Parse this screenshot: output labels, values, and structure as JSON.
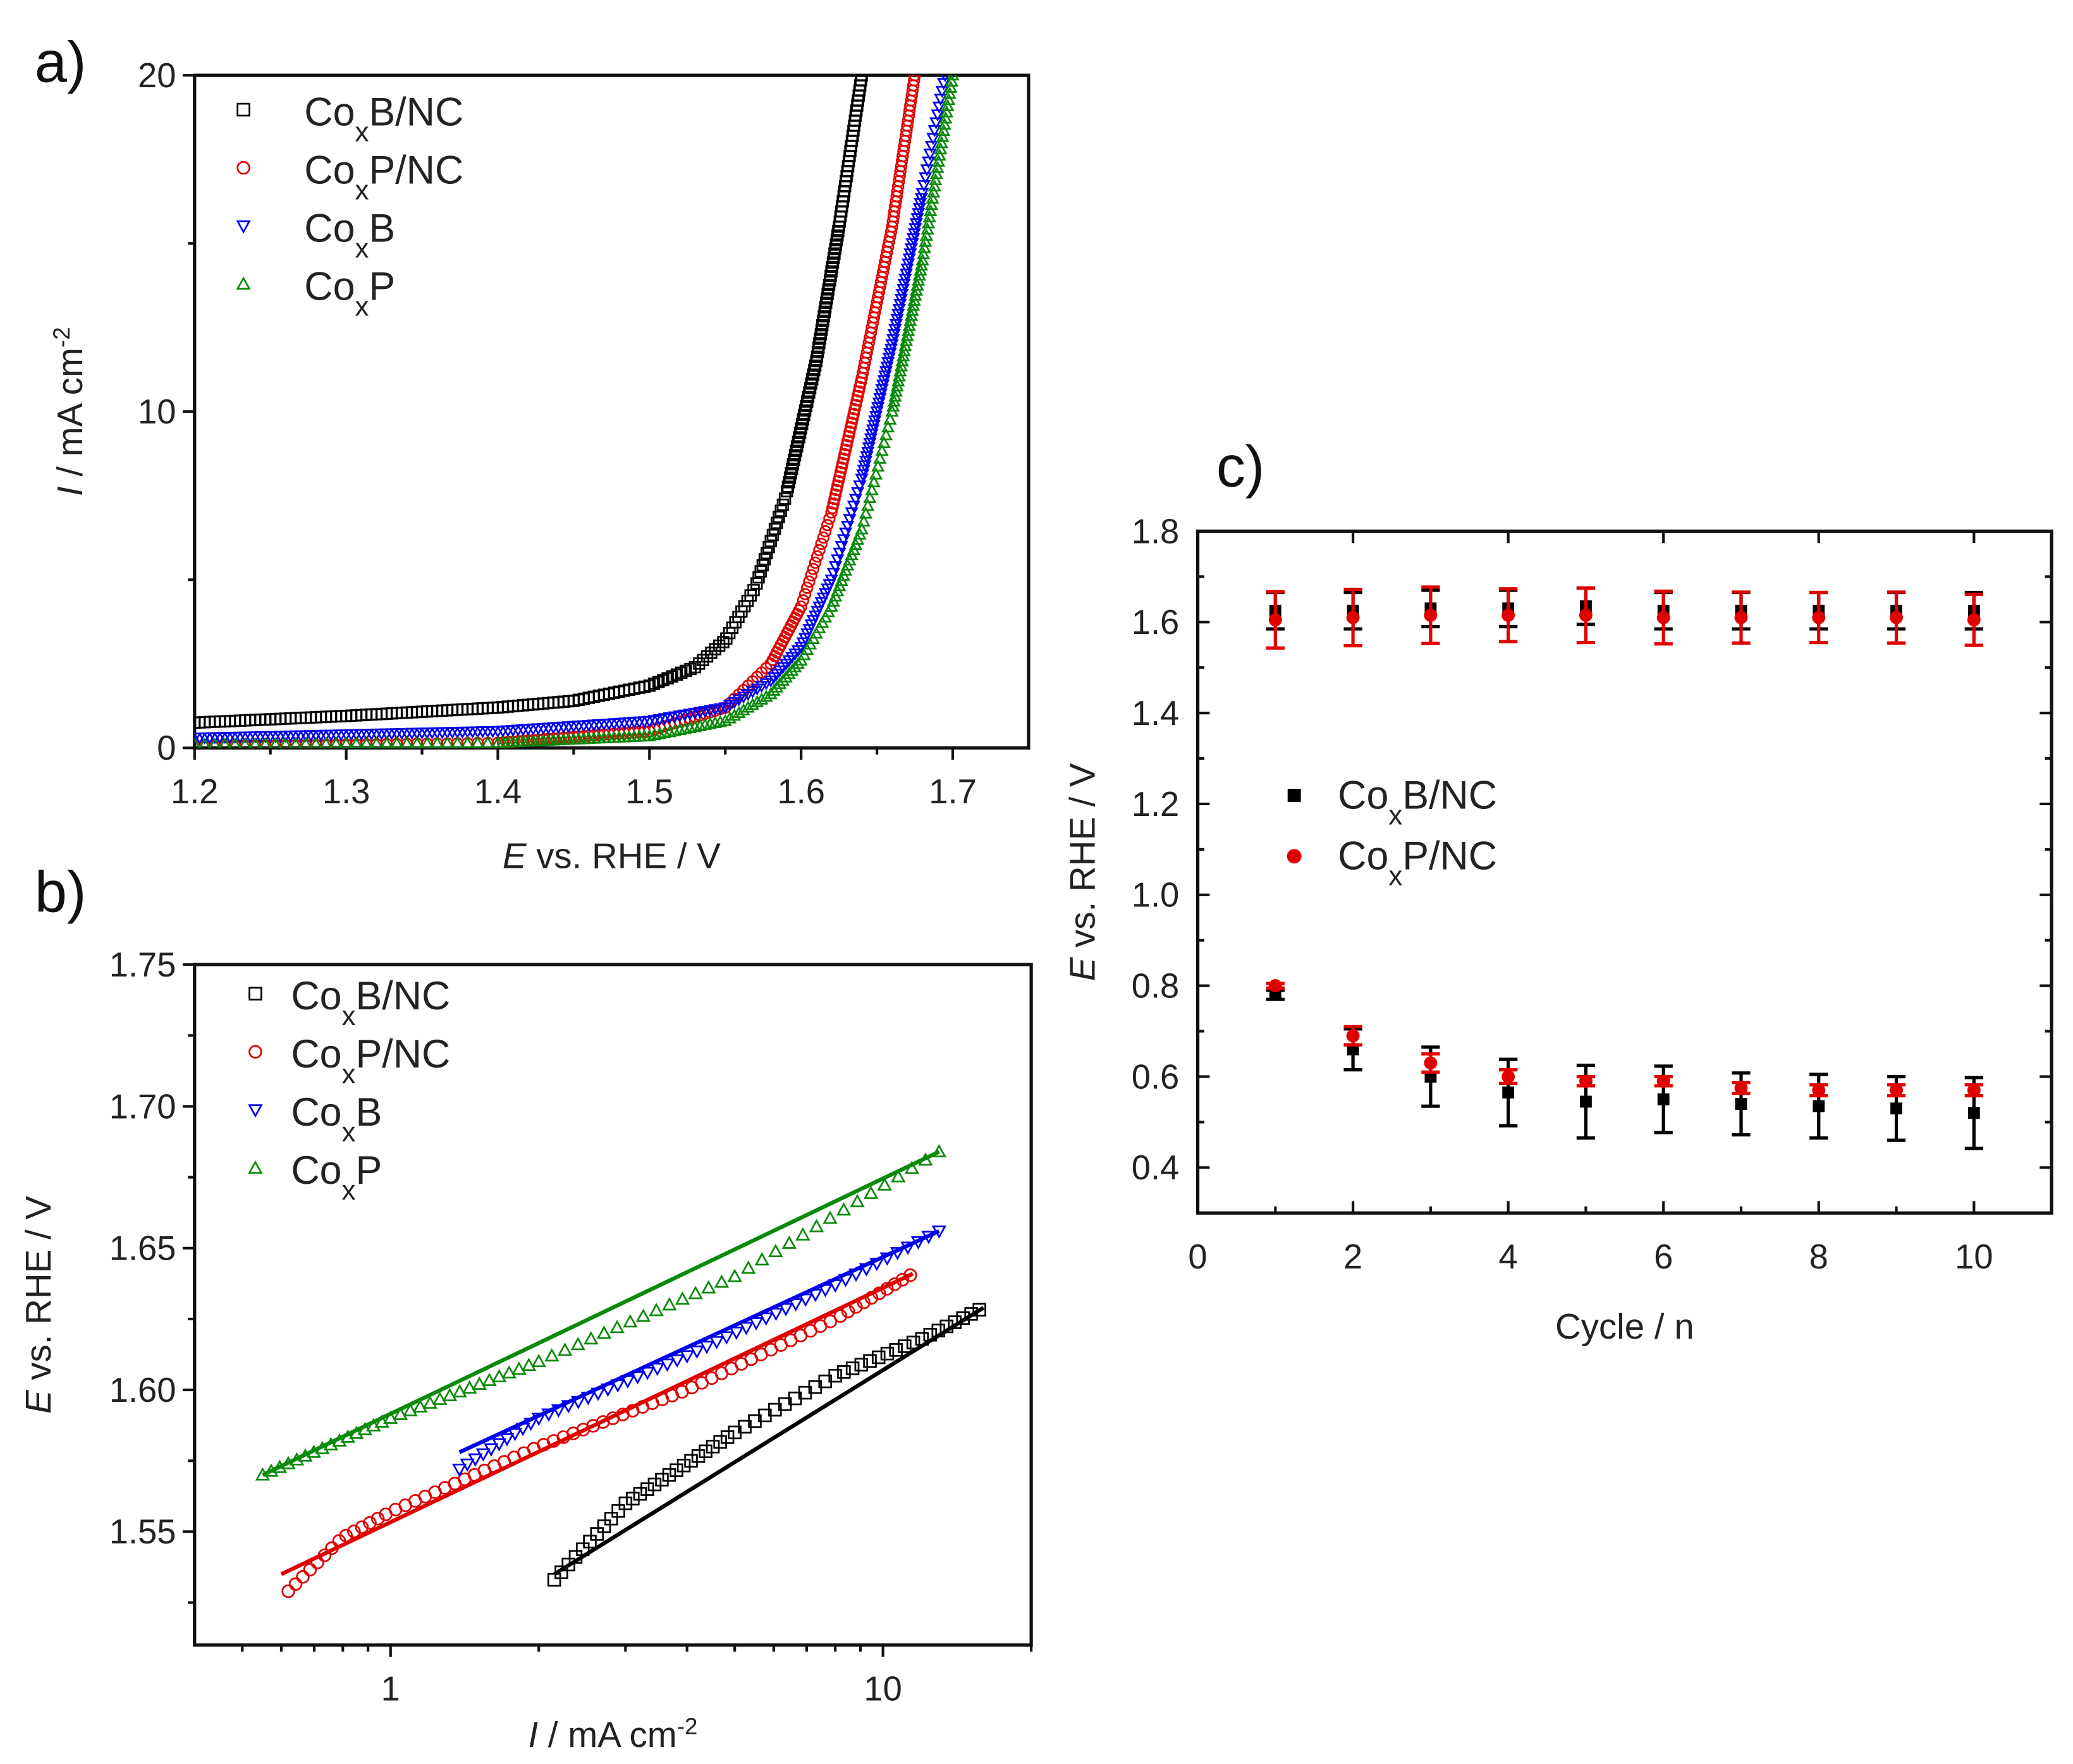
{
  "chart_data": [
    {
      "panel_label": "a)",
      "type": "scatter",
      "xlabel": {
        "var": "E",
        "rest": " vs. RHE / V"
      },
      "ylabel": {
        "var": "I",
        "rest": " / mA cm",
        "sup": "-2"
      },
      "xlim": [
        1.2,
        1.75
      ],
      "ylim": [
        0,
        20
      ],
      "xticks": [
        "1.2",
        "1.3",
        "1.4",
        "1.5",
        "1.6",
        "1.7"
      ],
      "yticks": [
        "0",
        "10",
        "20"
      ],
      "legend_position": "top-left",
      "series": [
        {
          "name": "CoxB/NC",
          "marker": "square",
          "color": "#000000",
          "points": [
            [
              1.2,
              0.75
            ],
            [
              1.3,
              0.95
            ],
            [
              1.4,
              1.2
            ],
            [
              1.45,
              1.4
            ],
            [
              1.5,
              1.85
            ],
            [
              1.53,
              2.4
            ],
            [
              1.55,
              3.2
            ],
            [
              1.57,
              4.8
            ],
            [
              1.59,
              7.5
            ],
            [
              1.61,
              11.5
            ],
            [
              1.625,
              15.5
            ],
            [
              1.64,
              20
            ]
          ]
        },
        {
          "name": "CoxP/NC",
          "marker": "circle",
          "color": "#e00000",
          "points": [
            [
              1.2,
              0.05
            ],
            [
              1.4,
              0.15
            ],
            [
              1.5,
              0.5
            ],
            [
              1.55,
              1.2
            ],
            [
              1.58,
              2.5
            ],
            [
              1.6,
              4.2
            ],
            [
              1.62,
              7
            ],
            [
              1.64,
              11
            ],
            [
              1.66,
              15.5
            ],
            [
              1.675,
              20
            ]
          ]
        },
        {
          "name": "CoxB",
          "marker": "triangle-down",
          "color": "#0000ee",
          "points": [
            [
              1.2,
              0.3
            ],
            [
              1.3,
              0.4
            ],
            [
              1.4,
              0.5
            ],
            [
              1.5,
              0.8
            ],
            [
              1.55,
              1.2
            ],
            [
              1.58,
              2.0
            ],
            [
              1.6,
              3.0
            ],
            [
              1.62,
              5
            ],
            [
              1.64,
              8
            ],
            [
              1.66,
              12
            ],
            [
              1.68,
              16.5
            ],
            [
              1.695,
              20
            ]
          ]
        },
        {
          "name": "CoxP",
          "marker": "triangle-up",
          "color": "#0a8a0a",
          "points": [
            [
              1.2,
              0.1
            ],
            [
              1.4,
              0.15
            ],
            [
              1.5,
              0.35
            ],
            [
              1.55,
              0.8
            ],
            [
              1.58,
              1.6
            ],
            [
              1.6,
              2.6
            ],
            [
              1.62,
              4.2
            ],
            [
              1.64,
              6.5
            ],
            [
              1.66,
              10
            ],
            [
              1.68,
              14.5
            ],
            [
              1.7,
              20
            ]
          ]
        }
      ]
    },
    {
      "panel_label": "b)",
      "type": "scatter",
      "xscale": "log",
      "xlabel": {
        "var": "I",
        "rest": " / mA cm",
        "sup": "-2"
      },
      "ylabel": {
        "var": "E",
        "rest": " vs. RHE / V"
      },
      "xlim": [
        0.4,
        20
      ],
      "ylim": [
        1.51,
        1.75
      ],
      "xticks": [
        "1",
        "10"
      ],
      "yticks": [
        "1.55",
        "1.60",
        "1.65",
        "1.70",
        "1.75"
      ],
      "legend_position": "top-left",
      "series": [
        {
          "name": "CoxB/NC",
          "marker": "square",
          "color": "#000000",
          "points": [
            [
              2.15,
              1.533
            ],
            [
              3,
              1.56
            ],
            [
              5,
              1.585
            ],
            [
              8,
              1.605
            ],
            [
              12,
              1.618
            ],
            [
              16,
              1.629
            ]
          ],
          "fit": [
            [
              2.15,
              1.535
            ],
            [
              16,
              1.629
            ]
          ]
        },
        {
          "name": "CoxP/NC",
          "marker": "circle",
          "color": "#e00000",
          "points": [
            [
              0.62,
              1.529
            ],
            [
              0.8,
              1.548
            ],
            [
              1,
              1.557
            ],
            [
              2,
              1.58
            ],
            [
              4,
              1.6
            ],
            [
              8,
              1.625
            ],
            [
              11.5,
              1.641
            ]
          ],
          "fit": [
            [
              0.6,
              1.535
            ],
            [
              11.5,
              1.641
            ]
          ]
        },
        {
          "name": "CoxB",
          "marker": "triangle-down",
          "color": "#0000ee",
          "points": [
            [
              1.38,
              1.572
            ],
            [
              2,
              1.59
            ],
            [
              4,
              1.612
            ],
            [
              8,
              1.637
            ],
            [
              13,
              1.656
            ]
          ],
          "fit": [
            [
              1.38,
              1.578
            ],
            [
              13,
              1.656
            ]
          ]
        },
        {
          "name": "CoxP",
          "marker": "triangle-up",
          "color": "#0a8a0a",
          "points": [
            [
              0.55,
              1.57
            ],
            [
              1,
              1.59
            ],
            [
              2,
              1.61
            ],
            [
              5,
              1.64
            ],
            [
              13,
              1.684
            ]
          ],
          "fit": [
            [
              0.55,
              1.57
            ],
            [
              13,
              1.684
            ]
          ]
        }
      ]
    },
    {
      "panel_label": "c)",
      "type": "scatter",
      "xlabel": {
        "var": "",
        "rest": "Cycle / n"
      },
      "ylabel": {
        "var": "E",
        "rest": " vs. RHE / V"
      },
      "xlim": [
        0,
        11
      ],
      "ylim": [
        0.3,
        1.8
      ],
      "xticks": [
        "0",
        "2",
        "4",
        "6",
        "8",
        "10"
      ],
      "yticks": [
        "0.4",
        "0.6",
        "0.8",
        "1.0",
        "1.2",
        "1.4",
        "1.6",
        "1.8"
      ],
      "legend_position": "center-left",
      "x": [
        1,
        2,
        3,
        4,
        5,
        6,
        7,
        8,
        9,
        10
      ],
      "series": [
        {
          "name": "CoxB/NC",
          "marker": "filled-square",
          "color": "#000000",
          "upper": [
            1.625,
            1.625,
            1.63,
            1.63,
            1.635,
            1.625,
            1.625,
            1.625,
            1.625,
            1.625
          ],
          "upper_err": [
            0.04,
            0.04,
            0.04,
            0.04,
            0.04,
            0.04,
            0.04,
            0.04,
            0.04,
            0.04
          ],
          "lower": [
            0.78,
            0.66,
            0.6,
            0.565,
            0.545,
            0.55,
            0.54,
            0.535,
            0.53,
            0.52
          ],
          "lower_err": [
            0.01,
            0.045,
            0.065,
            0.073,
            0.08,
            0.073,
            0.068,
            0.07,
            0.07,
            0.078
          ]
        },
        {
          "name": "CoxP/NC",
          "marker": "filled-circle",
          "color": "#e00000",
          "upper": [
            1.605,
            1.61,
            1.615,
            1.615,
            1.615,
            1.61,
            1.61,
            1.61,
            1.61,
            1.605
          ],
          "upper_err": [
            0.062,
            0.062,
            0.062,
            0.058,
            0.06,
            0.058,
            0.056,
            0.055,
            0.056,
            0.056
          ],
          "lower": [
            0.8,
            0.69,
            0.63,
            0.6,
            0.59,
            0.59,
            0.575,
            0.57,
            0.57,
            0.57
          ],
          "lower_err": [
            0.005,
            0.02,
            0.02,
            0.015,
            0.01,
            0.01,
            0.012,
            0.012,
            0.012,
            0.012
          ]
        }
      ]
    }
  ]
}
